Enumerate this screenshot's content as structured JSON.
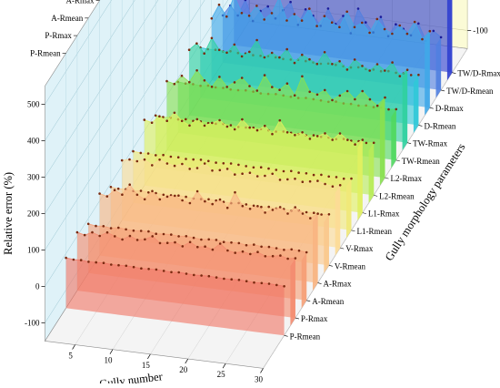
{
  "chart_data": {
    "type": "area",
    "subtype": "3d-waterfall",
    "x_axis": {
      "label": "Gully number",
      "ticks": [
        5,
        10,
        15,
        20,
        25,
        30
      ],
      "range": [
        1,
        30
      ]
    },
    "y_axis": {
      "label": "Gully morphology parameters"
    },
    "z_axis": {
      "label": "Relative error (%)",
      "ticks": [
        -100,
        0,
        100,
        200,
        300,
        400,
        500
      ],
      "range": [
        -150,
        550
      ]
    },
    "grid": true,
    "series": [
      {
        "name": "P-Rmean",
        "color": "#f07868",
        "values": [
          -12,
          -14,
          -13,
          -15,
          -14,
          -13,
          -15,
          -14,
          -13,
          -14,
          -15,
          -14,
          -13,
          -14,
          -15,
          -13,
          -14,
          -15,
          -14,
          -13,
          -14,
          -15,
          -14,
          -13,
          -14,
          -15,
          -14,
          -13,
          -14,
          -15
        ]
      },
      {
        "name": "P-Rmax",
        "color": "#f48c70",
        "values": [
          10,
          5,
          15,
          8,
          20,
          12,
          6,
          18,
          10,
          14,
          25,
          9,
          12,
          16,
          8,
          22,
          11,
          15,
          9,
          28,
          12,
          8,
          14,
          10,
          18,
          9,
          12,
          16,
          10,
          14
        ]
      },
      {
        "name": "A-Rmean",
        "color": "#f6a078",
        "values": [
          -15,
          -18,
          -16,
          -19,
          -15,
          -17,
          -18,
          -16,
          -15,
          -19,
          -17,
          -16,
          -18,
          -15,
          -17,
          -19,
          -16,
          -15,
          -18,
          -17,
          -16,
          -19,
          -15,
          -18,
          -16,
          -17,
          -19,
          -15,
          -16,
          -18
        ]
      },
      {
        "name": "A-Rmax",
        "color": "#f8b482",
        "values": [
          20,
          15,
          35,
          25,
          55,
          30,
          20,
          45,
          25,
          35,
          40,
          30,
          25,
          60,
          35,
          30,
          45,
          25,
          70,
          35,
          30,
          40,
          25,
          35,
          45,
          30,
          50,
          35,
          25,
          40
        ]
      },
      {
        "name": "V-Rmean",
        "color": "#fac88c",
        "values": [
          -10,
          -12,
          -11,
          -13,
          -10,
          -12,
          -11,
          -13,
          -12,
          -10,
          -11,
          -13,
          -12,
          -10,
          -11,
          -12,
          -13,
          -10,
          -11,
          -12,
          -13,
          -10,
          -12,
          -11,
          -13,
          -10,
          -12,
          -11,
          -13,
          -10
        ]
      },
      {
        "name": "V-Rmax",
        "color": "#fcdc96",
        "values": [
          15,
          20,
          18,
          25,
          12,
          30,
          22,
          18,
          26,
          15,
          20,
          35,
          18,
          22,
          28,
          15,
          20,
          25,
          18,
          22,
          30,
          16,
          20,
          24,
          18,
          22,
          26,
          20,
          16,
          22
        ]
      },
      {
        "name": "L1-Rmean",
        "color": "#f0e878",
        "values": [
          -8,
          -10,
          -9,
          -11,
          -8,
          -10,
          -9,
          -11,
          -10,
          -8,
          -9,
          -11,
          -10,
          -8,
          -9,
          -10,
          -11,
          -8,
          -9,
          -10,
          -11,
          -8,
          -10,
          -9,
          -11,
          -8,
          -10,
          -9,
          -11,
          -8
        ]
      },
      {
        "name": "L1-Rmax",
        "color": "#e0f060",
        "values": [
          30,
          25,
          45,
          35,
          60,
          40,
          30,
          50,
          35,
          45,
          55,
          40,
          35,
          65,
          45,
          40,
          55,
          35,
          75,
          45,
          40,
          50,
          35,
          45,
          55,
          40,
          60,
          45,
          35,
          50
        ]
      },
      {
        "name": "L2-Rmean",
        "color": "#b8ec58",
        "values": [
          -6,
          -8,
          -7,
          -9,
          -6,
          -8,
          -7,
          -9,
          -8,
          -6,
          -7,
          -9,
          -8,
          -6,
          -7,
          -8,
          -9,
          -6,
          -7,
          -8,
          -9,
          -6,
          -8,
          -7,
          -9,
          -6,
          -8,
          -7,
          -9,
          -6
        ]
      },
      {
        "name": "L2-Rmax",
        "color": "#88e050",
        "values": [
          40,
          35,
          60,
          45,
          80,
          55,
          40,
          70,
          45,
          60,
          75,
          55,
          45,
          90,
          60,
          55,
          75,
          45,
          100,
          60,
          55,
          70,
          45,
          60,
          75,
          55,
          80,
          60,
          45,
          70
        ]
      },
      {
        "name": "TW-Rmean",
        "color": "#50d860",
        "values": [
          -10,
          -12,
          -11,
          -13,
          -10,
          -12,
          -11,
          -13,
          -12,
          -10,
          -11,
          -13,
          -12,
          -10,
          -11,
          -12,
          -13,
          -10,
          -11,
          -12,
          -13,
          -10,
          -12,
          -11,
          -13,
          -10,
          -12,
          -11,
          -13,
          -10
        ]
      },
      {
        "name": "TW-Rmax",
        "color": "#30d0a0",
        "values": [
          30,
          50,
          25,
          70,
          40,
          35,
          60,
          30,
          45,
          80,
          35,
          50,
          40,
          65,
          30,
          55,
          45,
          35,
          70,
          40,
          50,
          30,
          60,
          45,
          35,
          55,
          40,
          65,
          30,
          50
        ]
      },
      {
        "name": "D-Rmean",
        "color": "#30c8d8",
        "values": [
          -12,
          -14,
          -13,
          -15,
          -12,
          -14,
          -13,
          -15,
          -14,
          -12,
          -13,
          -15,
          -14,
          -12,
          -13,
          -14,
          -15,
          -12,
          -13,
          -14,
          -15,
          -12,
          -14,
          -13,
          -15,
          -12,
          -14,
          -13,
          -15,
          -12
        ]
      },
      {
        "name": "D-Rmax",
        "color": "#40a8e8",
        "values": [
          20,
          60,
          30,
          90,
          45,
          40,
          70,
          35,
          55,
          100,
          40,
          60,
          45,
          80,
          35,
          65,
          50,
          40,
          85,
          45,
          60,
          35,
          75,
          50,
          40,
          65,
          45,
          80,
          35,
          60
        ]
      },
      {
        "name": "TW/D-Rmean",
        "color": "#5080e0",
        "values": [
          -20,
          10,
          -15,
          30,
          -25,
          5,
          20,
          -10,
          15,
          40,
          -20,
          25,
          10,
          -15,
          35,
          -5,
          20,
          -25,
          45,
          10,
          -15,
          30,
          -20,
          15,
          5,
          -10,
          25,
          -20,
          10,
          -5
        ]
      },
      {
        "name": "TW/D-Rmax",
        "color": "#3040d0",
        "values": [
          50,
          120,
          80,
          480,
          150,
          90,
          420,
          110,
          180,
          470,
          200,
          130,
          310,
          120,
          250,
          90,
          180,
          140,
          100,
          160,
          380,
          150,
          220,
          130,
          270,
          110,
          200,
          90,
          300,
          80
        ]
      }
    ]
  }
}
